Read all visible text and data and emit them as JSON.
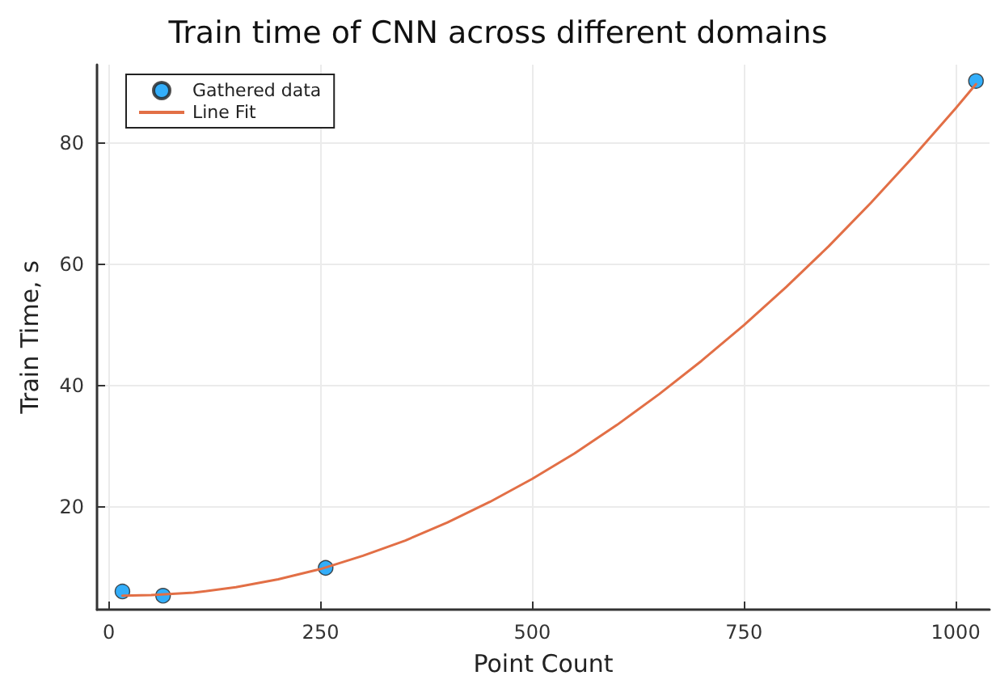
{
  "chart_data": {
    "type": "scatter",
    "title": "Train time of CNN across different domains",
    "xlabel": "Point Count",
    "ylabel": "Train Time, s",
    "xlim": [
      -14,
      1040
    ],
    "xticks": [
      0,
      250,
      500,
      750,
      1000
    ],
    "ylim": [
      3,
      93
    ],
    "yticks": [
      20,
      40,
      60,
      80
    ],
    "grid": true,
    "legend": "top left",
    "series": [
      {
        "name": "Gathered data",
        "marker": "circle",
        "color": "#009af9",
        "x": [
          16,
          64,
          256,
          1024
        ],
        "values": [
          6.0,
          5.3,
          9.9,
          90.3
        ]
      },
      {
        "name": "Line Fit",
        "type": "line",
        "marker": "none",
        "line_style": "solid",
        "color": "#e26f46",
        "x": [
          16,
          50,
          100,
          150,
          200,
          250,
          300,
          350,
          400,
          450,
          500,
          550,
          600,
          650,
          700,
          750,
          800,
          850,
          900,
          950,
          1000,
          1024
        ],
        "values": [
          5.3,
          5.4,
          5.8,
          6.7,
          8.0,
          9.7,
          11.9,
          14.4,
          17.4,
          20.8,
          24.6,
          28.8,
          33.5,
          38.6,
          44.1,
          50.0,
          56.3,
          63.0,
          70.2,
          77.8,
          85.8,
          89.8
        ]
      }
    ]
  }
}
